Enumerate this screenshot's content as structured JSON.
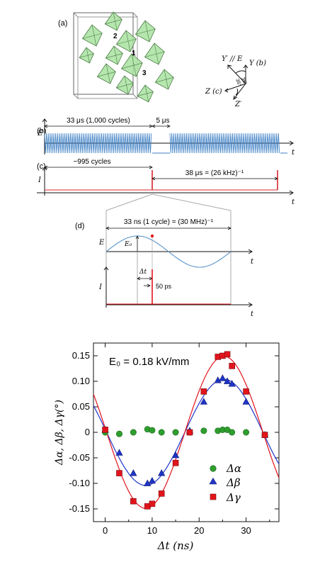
{
  "panel_labels": {
    "a": "(a)",
    "b": "(b)",
    "c": "(c)",
    "d": "(d)"
  },
  "crystal": {
    "octahedra": [
      "1",
      "2",
      "3"
    ],
    "fill_color": "#a8e2a0",
    "edge_color": "#4a7a44"
  },
  "axes_labels": {
    "y_prime_e": "Y′ // E",
    "y_b": "Y (b)",
    "z_c": "Z (c)",
    "z_prime": "Z′",
    "angle_1": "35°",
    "angle_2": "35°"
  },
  "panel_b": {
    "ylabel": "E",
    "xlabel": "t",
    "span_label": "33 μs (1,000 cycles)",
    "gap_label": "5 μs",
    "color": "#3d7fc4"
  },
  "panel_c": {
    "ylabel": "I",
    "xlabel": "t",
    "span_label": "~995 cycles",
    "period_label": "38 μs = (26 kHz)⁻¹",
    "color": "#d8262a"
  },
  "panel_d": {
    "period_label": "33 ns (1 cycle) = (30 MHz)⁻¹",
    "e_label": "E",
    "e0_label": "E₀",
    "i_label": "I",
    "t_label": "t",
    "dt_label": "Δt",
    "pulse_label": "50 ps"
  },
  "chart_data": {
    "type": "scatter",
    "annotation": "E₀ = 0.18 kV/mm",
    "xlabel": "Δt (ns)",
    "ylabel": "Δα, Δβ, Δγ(°)",
    "xlim": [
      -2.5,
      37
    ],
    "ylim": [
      -0.175,
      0.175
    ],
    "x_ticks": [
      "0",
      "10",
      "20",
      "30"
    ],
    "y_ticks": [
      "0.15",
      "0.10",
      "0.05",
      "0",
      "-0.05",
      "-0.10",
      "-0.15"
    ],
    "legend_position": "bottom-right",
    "series": [
      {
        "name": "Δα",
        "marker": "circle",
        "color": "#2f9e2f",
        "x": [
          0,
          3,
          6,
          9,
          10,
          12,
          15,
          18,
          21,
          24,
          25,
          26,
          27,
          30,
          34
        ],
        "y": [
          0.0,
          -0.003,
          0.0,
          0.006,
          0.004,
          0.0,
          0.0,
          0.0,
          0.003,
          0.003,
          0.005,
          0.005,
          0.0,
          0.0,
          -0.005
        ]
      },
      {
        "name": "Δβ",
        "marker": "triangle",
        "color": "#1f35c9",
        "x": [
          0,
          3,
          6,
          9,
          10,
          12,
          15,
          18,
          21,
          24,
          25,
          26,
          27,
          30,
          34
        ],
        "y": [
          0.005,
          -0.04,
          -0.08,
          -0.1,
          -0.095,
          -0.08,
          -0.045,
          0.003,
          0.06,
          0.102,
          0.106,
          0.1,
          0.095,
          0.06,
          -0.005
        ]
      },
      {
        "name": "Δγ",
        "marker": "square",
        "color": "#e2141c",
        "x": [
          0,
          3,
          6,
          9,
          10,
          12,
          15,
          18,
          21,
          24,
          25,
          26,
          27,
          30,
          34
        ],
        "y": [
          0.005,
          -0.08,
          -0.135,
          -0.145,
          -0.14,
          -0.12,
          -0.06,
          0.0,
          0.08,
          0.148,
          0.15,
          0.153,
          0.13,
          0.08,
          -0.005
        ]
      }
    ],
    "fits": [
      {
        "series": "Δβ",
        "amplitude": 0.104,
        "offset": 0.0
      },
      {
        "series": "Δγ",
        "amplitude": 0.149,
        "offset": 0.0
      }
    ]
  }
}
